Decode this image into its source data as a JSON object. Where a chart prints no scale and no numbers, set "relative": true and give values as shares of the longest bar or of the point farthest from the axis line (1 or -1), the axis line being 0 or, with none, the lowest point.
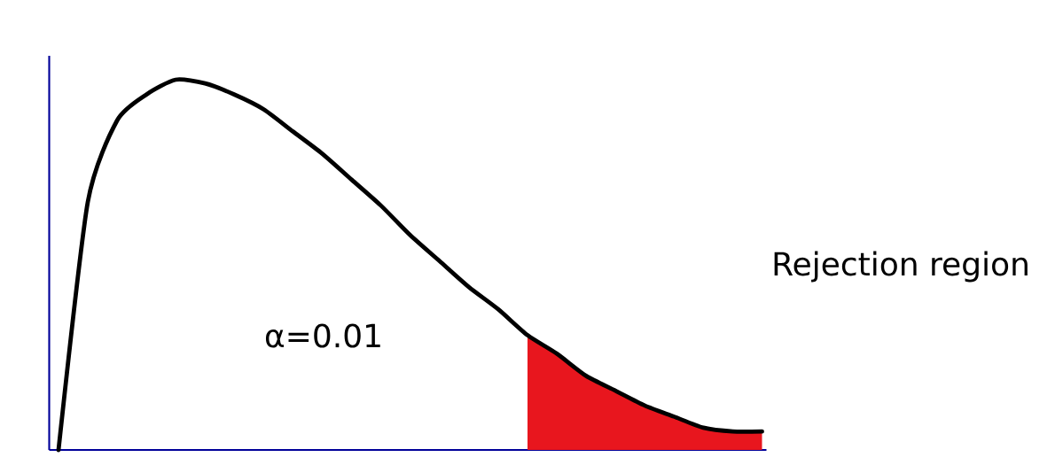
{
  "chart_data": {
    "type": "line",
    "relative": true,
    "categories": [
      null,
      null,
      null,
      null,
      null,
      null,
      null,
      null,
      null,
      null,
      null,
      null,
      null,
      null,
      null,
      null,
      null,
      null,
      null,
      null,
      null,
      null,
      null,
      null,
      null
    ],
    "series": [
      {
        "type": "area",
        "color": "#e8161e",
        "values": [
          null,
          null,
          null,
          null,
          null,
          null,
          null,
          null,
          null,
          null,
          null,
          null,
          null,
          null,
          null,
          null,
          0.31,
          0.26,
          0.2,
          0.16,
          0.12,
          0.09,
          0.06,
          0.05,
          0.05
        ]
      },
      {
        "color": "#000000",
        "values": [
          0,
          0.67,
          0.89,
          0.96,
          1.0,
          0.99,
          0.96,
          0.92,
          0.86,
          0.8,
          0.73,
          0.66,
          0.58,
          0.51,
          0.44,
          0.38,
          0.31,
          0.26,
          0.2,
          0.16,
          0.12,
          0.09,
          0.06,
          0.05,
          0.05
        ]
      }
    ],
    "marker": "none",
    "line_style": "solid",
    "annotations": [
      "α=0.01",
      "Rejection region"
    ]
  }
}
